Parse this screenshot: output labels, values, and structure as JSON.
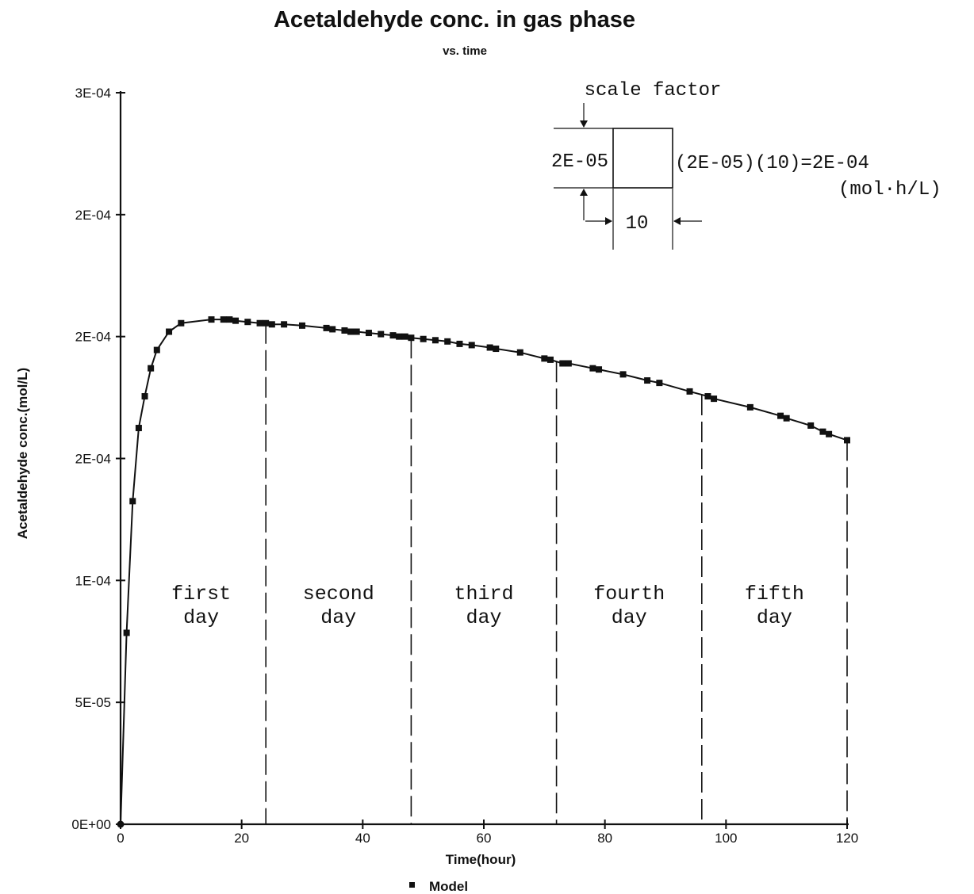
{
  "chart_data": {
    "type": "line",
    "title": "Acetaldehyde conc. in gas phase",
    "subtitle": "vs. time",
    "xlabel": "Time(hour)",
    "ylabel": "Acetaldehyde conc.(mol/L)",
    "xlim": [
      0,
      120
    ],
    "ylim": [
      0,
      0.0003
    ],
    "x_ticks": [
      0,
      20,
      40,
      60,
      80,
      100,
      120
    ],
    "x_tick_labels": [
      "0",
      "20",
      "40",
      "60",
      "80",
      "100",
      "120"
    ],
    "y_ticks": [
      0,
      5e-05,
      0.0001,
      0.00015,
      0.0002,
      0.00025,
      0.0003
    ],
    "y_tick_labels": [
      "0E+00",
      "5E-05",
      "1E-04",
      "2E-04",
      "2E-04",
      "2E-04",
      "3E-04"
    ],
    "grid": false,
    "legend_position": "bottom-center",
    "series": [
      {
        "name": "Model",
        "marker": "square",
        "x": [
          0,
          1,
          2,
          3,
          4,
          5,
          6,
          8,
          10,
          15,
          17,
          18,
          19,
          21,
          23,
          24,
          25,
          27,
          30,
          34,
          35,
          37,
          38,
          39,
          41,
          43,
          45,
          46,
          47,
          48,
          50,
          52,
          54,
          56,
          58,
          61,
          62,
          66,
          70,
          71,
          73,
          74,
          78,
          79,
          83,
          87,
          89,
          94,
          97,
          98,
          104,
          109,
          110,
          114,
          116,
          117,
          120
        ],
        "y": [
          0,
          7.85e-05,
          0.0001325,
          0.0001625,
          0.0001755,
          0.000187,
          0.0001945,
          0.000202,
          0.0002055,
          0.000207,
          0.000207,
          0.000207,
          0.0002065,
          0.000206,
          0.0002055,
          0.0002055,
          0.000205,
          0.000205,
          0.0002045,
          0.0002035,
          0.000203,
          0.0002025,
          0.000202,
          0.000202,
          0.0002015,
          0.000201,
          0.0002005,
          0.0002,
          0.0002,
          0.0001995,
          0.000199,
          0.0001985,
          0.000198,
          0.000197,
          0.0001965,
          0.0001955,
          0.000195,
          0.0001935,
          0.000191,
          0.0001905,
          0.000189,
          0.000189,
          0.000187,
          0.0001865,
          0.0001845,
          0.000182,
          0.000181,
          0.0001775,
          0.0001755,
          0.0001745,
          0.000171,
          0.0001675,
          0.0001665,
          0.0001635,
          0.000161,
          0.00016,
          0.0001575
        ]
      }
    ],
    "annotations": {
      "day_divisions_x": [
        24,
        48,
        72,
        96,
        120
      ],
      "day_labels": [
        {
          "line1": "first",
          "line2": "day"
        },
        {
          "line1": "second",
          "line2": "day"
        },
        {
          "line1": "third",
          "line2": "day"
        },
        {
          "line1": "fourth",
          "line2": "day"
        },
        {
          "line1": "fifth",
          "line2": "day"
        }
      ],
      "scale_factor": {
        "title": "scale factor",
        "height_label": "2E-05",
        "width_label": "10",
        "product": "(2E-05)(10)=2E-04",
        "units": "(mol·h/L)"
      }
    }
  }
}
